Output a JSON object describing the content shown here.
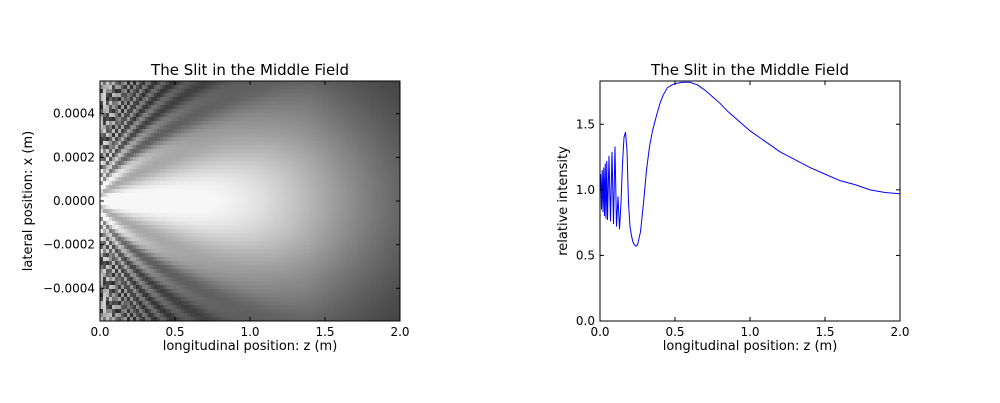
{
  "chart_data": [
    {
      "type": "heatmap",
      "title": "The Slit in the Middle Field",
      "xlabel": "longitudinal position: z (m)",
      "ylabel": "lateral position: x (m)",
      "xlim": [
        0.0,
        2.0
      ],
      "ylim": [
        -0.00055,
        0.00055
      ],
      "xticks": [
        "0.0",
        "0.5",
        "1.0",
        "1.5",
        "2.0"
      ],
      "xtick_values": [
        0.0,
        0.5,
        1.0,
        1.5,
        2.0
      ],
      "yticks": [
        "−0.0004",
        "−0.0002",
        "0.0000",
        "0.0002",
        "0.0004"
      ],
      "ytick_values": [
        -0.0004,
        -0.0002,
        0.0,
        0.0002,
        0.0004
      ],
      "colormap": "gray",
      "grid": false,
      "description_of_field": "diffraction pattern of a slit: fringes near z=0, bright central lobe peaking near z≈0.7 m",
      "z_peak": 0.7,
      "slit_halfwidth": 0.00055
    },
    {
      "type": "line",
      "title": "The Slit in the Middle Field",
      "xlabel": "longitudinal position: z (m)",
      "ylabel": "relative intensity",
      "xlim": [
        0.0,
        2.0
      ],
      "ylim": [
        0.0,
        1.83
      ],
      "xticks": [
        "0.0",
        "0.5",
        "1.0",
        "1.5",
        "2.0"
      ],
      "xtick_values": [
        0.0,
        0.5,
        1.0,
        1.5,
        2.0
      ],
      "yticks": [
        "0.0",
        "0.5",
        "1.0",
        "1.5"
      ],
      "ytick_values": [
        0.0,
        0.5,
        1.0,
        1.5
      ],
      "grid": false,
      "color": "#0000ff",
      "series": [
        {
          "x": [
            0.0,
            0.005,
            0.01,
            0.015,
            0.02,
            0.025,
            0.03,
            0.035,
            0.04,
            0.045,
            0.05,
            0.06,
            0.07,
            0.08,
            0.09,
            0.1,
            0.11,
            0.12,
            0.13,
            0.14,
            0.15,
            0.16,
            0.17,
            0.18,
            0.19,
            0.2,
            0.21,
            0.22,
            0.23,
            0.24,
            0.25,
            0.27,
            0.29,
            0.31,
            0.33,
            0.35,
            0.38,
            0.4,
            0.42,
            0.45,
            0.48,
            0.5,
            0.55,
            0.6,
            0.65,
            0.7,
            0.75,
            0.8,
            0.85,
            0.9,
            0.95,
            1.0,
            1.1,
            1.2,
            1.3,
            1.4,
            1.5,
            1.6,
            1.7,
            1.8,
            1.9,
            2.0
          ],
          "y": [
            1.0,
            1.12,
            0.85,
            1.15,
            0.83,
            1.17,
            0.8,
            1.2,
            0.78,
            1.22,
            0.77,
            1.26,
            0.76,
            1.29,
            0.74,
            1.33,
            0.72,
            0.95,
            0.7,
            0.9,
            1.2,
            1.4,
            1.44,
            1.3,
            0.9,
            0.72,
            0.65,
            0.6,
            0.58,
            0.57,
            0.58,
            0.68,
            0.9,
            1.15,
            1.33,
            1.45,
            1.58,
            1.66,
            1.72,
            1.78,
            1.8,
            1.81,
            1.82,
            1.82,
            1.8,
            1.76,
            1.71,
            1.66,
            1.6,
            1.55,
            1.5,
            1.45,
            1.37,
            1.29,
            1.23,
            1.17,
            1.12,
            1.07,
            1.04,
            1.0,
            0.98,
            0.97
          ]
        }
      ]
    }
  ]
}
